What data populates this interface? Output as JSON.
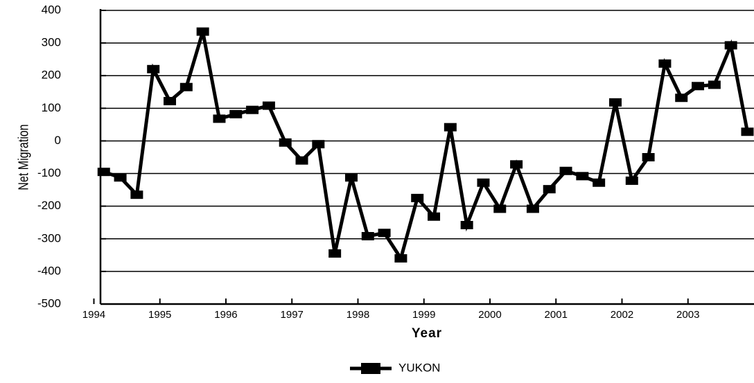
{
  "chart_data": {
    "type": "line",
    "x_label": "Year",
    "y_label": "Net Migration",
    "x": [
      1994.15,
      1994.4,
      1994.65,
      1994.9,
      1995.15,
      1995.4,
      1995.65,
      1995.9,
      1996.15,
      1996.4,
      1996.65,
      1996.9,
      1997.15,
      1997.4,
      1997.65,
      1997.9,
      1998.15,
      1998.4,
      1998.65,
      1998.9,
      1999.15,
      1999.4,
      1999.65,
      1999.9,
      2000.15,
      2000.4,
      2000.65,
      2000.9,
      2001.15,
      2001.4,
      2001.65,
      2001.9,
      2002.15,
      2002.4,
      2002.65,
      2002.9,
      2003.15,
      2003.4,
      2003.65,
      2003.9
    ],
    "series": [
      {
        "name": "YUKON",
        "color": "#000000",
        "values": [
          -95,
          -112,
          -165,
          220,
          122,
          165,
          335,
          68,
          82,
          95,
          108,
          -5,
          -60,
          -10,
          -345,
          -112,
          -292,
          -282,
          -360,
          -175,
          -232,
          42,
          -258,
          -128,
          -208,
          -72,
          -208,
          -148,
          -92,
          -108,
          -128,
          118,
          -122,
          -50,
          237,
          132,
          168,
          172,
          293,
          28
        ]
      }
    ],
    "xlim": [
      1994.1,
      2004.0
    ],
    "xticks": [
      1994,
      1995,
      1996,
      1997,
      1998,
      1999,
      2000,
      2001,
      2002,
      2003
    ],
    "ylim": [
      -500,
      400
    ],
    "yticks": [
      -500,
      -400,
      -300,
      -200,
      -100,
      0,
      100,
      200,
      300,
      400
    ],
    "grid": true,
    "legend": "bottom"
  }
}
